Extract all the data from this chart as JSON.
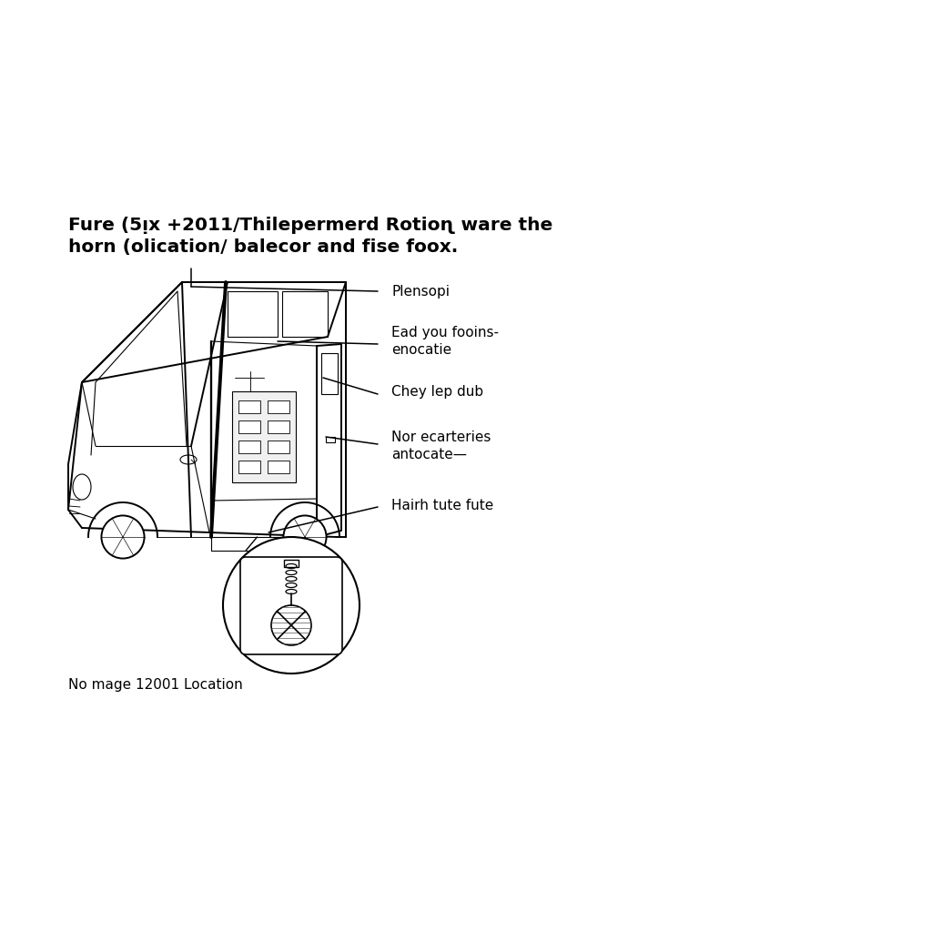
{
  "title_line1": "Fure (5ᴉx +2011/Thilepermerd Rotioɳ ware the",
  "title_line2": "horn (olication/ balecor and fise foox.",
  "title_fontsize": 14.5,
  "labels": [
    "Plensopi",
    "Ead you fooins-\nenocatie",
    "Chey lep dub",
    "Nor ecarteries\nantocate—",
    "Hairh tute fute"
  ],
  "footer": "No mage 12001 Location",
  "background_color": "#ffffff",
  "van_color": "#000000",
  "lw_main": 1.4,
  "lw_thin": 0.8,
  "label_fontsize": 11.0
}
